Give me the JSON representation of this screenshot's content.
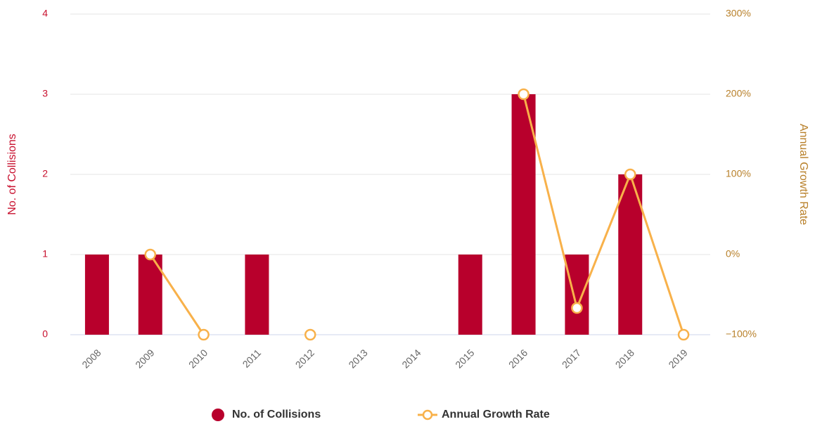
{
  "chart_data": {
    "type": "bar-line",
    "categories": [
      "2008",
      "2009",
      "2010",
      "2011",
      "2012",
      "2013",
      "2014",
      "2015",
      "2016",
      "2017",
      "2018",
      "2019"
    ],
    "series": [
      {
        "name": "No. of Collisions",
        "type": "bar",
        "color": "#b8002c",
        "values": [
          1,
          1,
          0,
          1,
          0,
          0,
          0,
          1,
          3,
          1,
          2,
          0
        ]
      },
      {
        "name": "Annual Growth Rate",
        "type": "line",
        "axis": "y2",
        "color": "#f8b14a",
        "values": [
          null,
          0,
          -100,
          null,
          -100,
          null,
          null,
          null,
          200,
          -66.67,
          100,
          -100
        ]
      }
    ],
    "ylabel": "No. of Collisions",
    "y2label": "Annual Growth Rate",
    "ylim": [
      0,
      4
    ],
    "yticks": [
      0,
      1,
      2,
      3,
      4
    ],
    "y2lim": [
      -100,
      300
    ],
    "y2ticks": [
      {
        "value": -100,
        "label": "−100%"
      },
      {
        "value": 0,
        "label": "0%"
      },
      {
        "value": 100,
        "label": "100%"
      },
      {
        "value": 200,
        "label": "200%"
      },
      {
        "value": 300,
        "label": "300%"
      }
    ],
    "grid": true,
    "legend": "bottom"
  }
}
